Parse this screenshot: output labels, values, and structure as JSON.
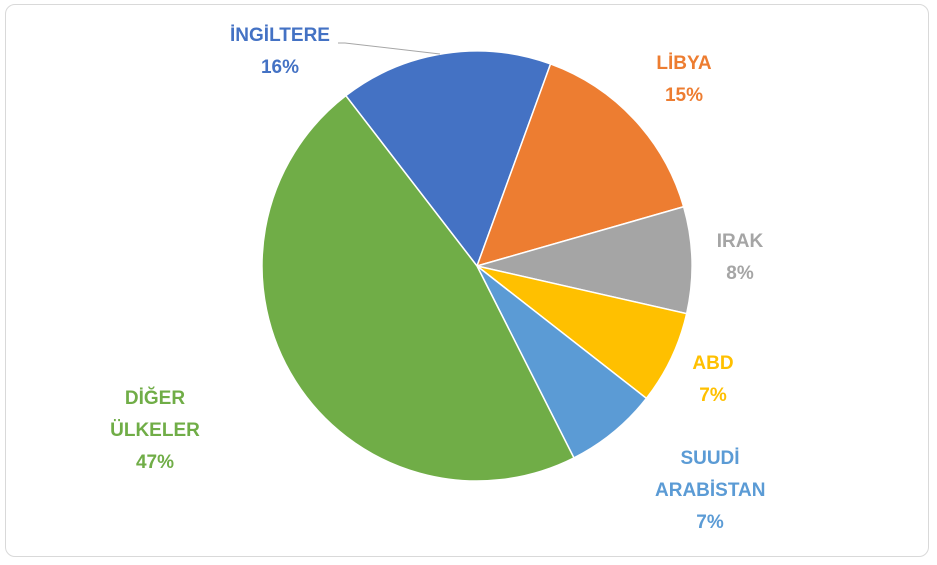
{
  "chart_data": {
    "type": "pie",
    "categories": [
      "İNGİLTERE",
      "LİBYA",
      "IRAK",
      "ABD",
      "SUUDİ ARABİSTAN",
      "DİĞER ÜLKELER"
    ],
    "values": [
      16,
      15,
      8,
      7,
      7,
      47
    ],
    "value_labels": [
      "16%",
      "15%",
      "8%",
      "7%",
      "7%",
      "47%"
    ],
    "colors": [
      "#4472c4",
      "#ed7d31",
      "#a5a5a5",
      "#ffc000",
      "#5b9bd5",
      "#70ad47"
    ]
  }
}
